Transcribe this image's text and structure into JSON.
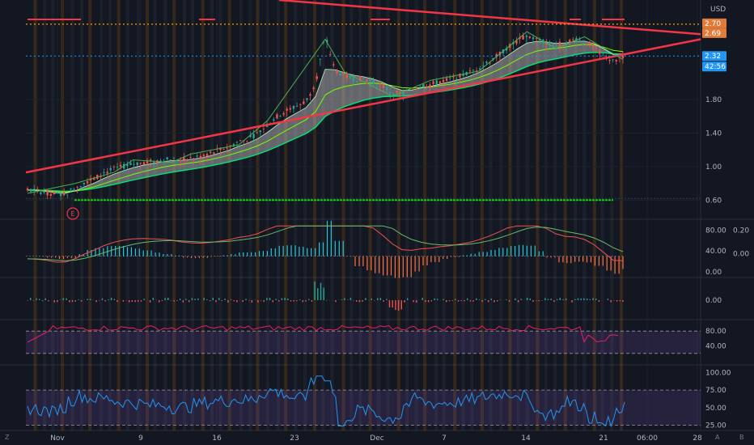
{
  "chart_data": {
    "type": "candlestick-with-indicators",
    "currency": "USD",
    "main": {
      "y_ticks": [
        "1.00",
        "1.40",
        "1.80",
        "0.60"
      ],
      "y_range": [
        0.4,
        2.95
      ],
      "price_series_approx": [
        0.72,
        0.71,
        0.69,
        0.66,
        0.68,
        0.75,
        0.82,
        0.86,
        0.93,
        0.97,
        1.0,
        1.03,
        1.05,
        1.06,
        1.08,
        1.09,
        1.08,
        1.1,
        1.12,
        1.16,
        1.2,
        1.24,
        1.3,
        1.33,
        1.4,
        1.5,
        1.6,
        1.67,
        1.72,
        1.78,
        2.0,
        2.56,
        2.15,
        2.08,
        2.05,
        2.05,
        2.01,
        1.96,
        1.88,
        1.86,
        1.92,
        1.97,
        1.98,
        2.02,
        2.04,
        2.08,
        2.12,
        2.18,
        2.25,
        2.33,
        2.42,
        2.5,
        2.56,
        2.52,
        2.48,
        2.45,
        2.48,
        2.52,
        2.5,
        2.43,
        2.33,
        2.25,
        2.32
      ],
      "price_labels": [
        {
          "text": "2.70",
          "color": "#e07b39"
        },
        {
          "text": "2.69",
          "color": "#e07b39"
        },
        {
          "text": "2.32",
          "color": "#2196f3"
        },
        {
          "text": "42:56",
          "color": "#2196f3"
        }
      ],
      "trendlines": "symmetrical triangle (red)",
      "support_line": "green dashed horizontal",
      "event_marker": "E"
    },
    "macd": {
      "y_ticks": [
        "80.00",
        "40.00",
        "0.00"
      ],
      "y_ticks_right": [
        "0.20",
        "0.00"
      ]
    },
    "volume": {
      "y_ticks": [
        "0.00"
      ]
    },
    "stoch": {
      "y_ticks": [
        "80.00",
        "40.00"
      ],
      "bands": [
        80,
        20
      ]
    },
    "rsi": {
      "y_ticks": [
        "100.00",
        "75.00",
        "50.00",
        "25.00"
      ],
      "bands": [
        75,
        25
      ]
    },
    "x_ticks": [
      "Nov",
      "9",
      "16",
      "23",
      "Dec",
      "7",
      "14",
      "21",
      "06:00",
      "28"
    ],
    "corner_labels": [
      "Z",
      "A",
      "B"
    ]
  }
}
